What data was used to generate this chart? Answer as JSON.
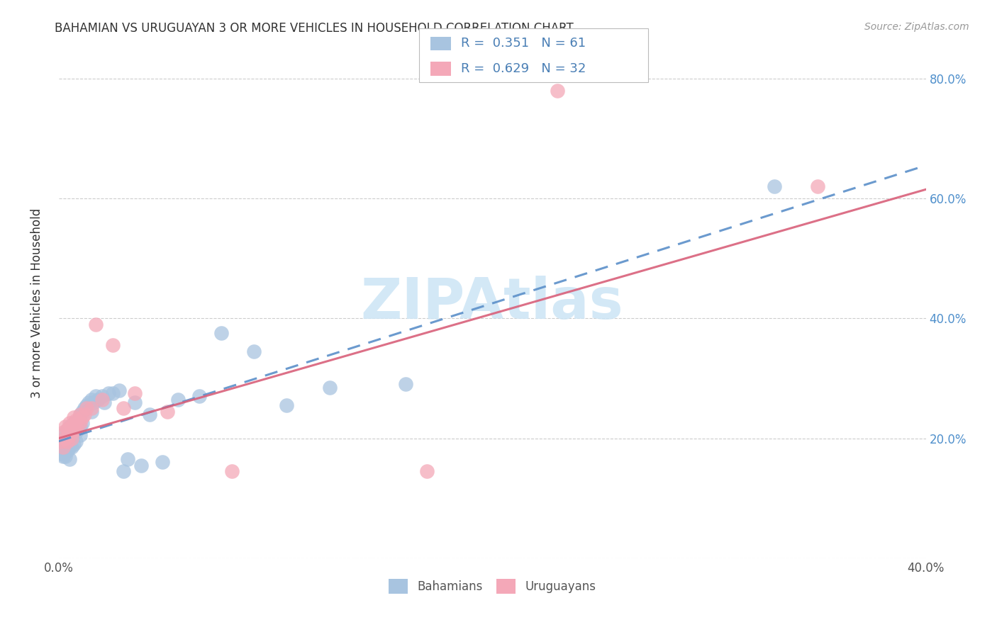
{
  "title": "BAHAMIAN VS URUGUAYAN 3 OR MORE VEHICLES IN HOUSEHOLD CORRELATION CHART",
  "source": "Source: ZipAtlas.com",
  "ylabel": "3 or more Vehicles in Household",
  "xlim": [
    0.0,
    0.4
  ],
  "ylim": [
    0.0,
    0.85
  ],
  "bahamian_color": "#a8c4e0",
  "uruguayan_color": "#f4a8b8",
  "bahamian_line_color": "#5b8fc9",
  "uruguayan_line_color": "#d9607a",
  "legend_text_color": "#4a7fb5",
  "legend_N_color": "#e05070",
  "R_bahamian": 0.351,
  "N_bahamian": 61,
  "R_uruguayan": 0.629,
  "N_uruguayan": 32,
  "watermark_text": "ZIPAtlas",
  "watermark_color": "#cce5f5",
  "grid_color": "#cccccc",
  "right_tick_color": "#5090cc",
  "ytick_positions": [
    0.0,
    0.2,
    0.4,
    0.6,
    0.8
  ],
  "ytick_labels_right": [
    "",
    "20.0%",
    "40.0%",
    "60.0%",
    "80.0%"
  ],
  "xtick_positions": [
    0.0,
    0.05,
    0.1,
    0.15,
    0.2,
    0.25,
    0.3,
    0.35,
    0.4
  ],
  "xtick_labels": [
    "0.0%",
    "",
    "",
    "",
    "",
    "",
    "",
    "",
    "40.0%"
  ],
  "bah_x": [
    0.001,
    0.001,
    0.002,
    0.002,
    0.002,
    0.003,
    0.003,
    0.003,
    0.003,
    0.004,
    0.004,
    0.004,
    0.004,
    0.005,
    0.005,
    0.005,
    0.005,
    0.006,
    0.006,
    0.006,
    0.006,
    0.007,
    0.007,
    0.007,
    0.008,
    0.008,
    0.008,
    0.009,
    0.009,
    0.01,
    0.01,
    0.01,
    0.011,
    0.011,
    0.012,
    0.013,
    0.014,
    0.015,
    0.015,
    0.016,
    0.017,
    0.018,
    0.02,
    0.021,
    0.023,
    0.025,
    0.028,
    0.03,
    0.032,
    0.035,
    0.038,
    0.042,
    0.048,
    0.055,
    0.065,
    0.075,
    0.09,
    0.105,
    0.125,
    0.16,
    0.33
  ],
  "bah_y": [
    0.195,
    0.175,
    0.185,
    0.17,
    0.2,
    0.195,
    0.21,
    0.185,
    0.17,
    0.195,
    0.215,
    0.205,
    0.18,
    0.2,
    0.22,
    0.185,
    0.165,
    0.22,
    0.21,
    0.2,
    0.185,
    0.225,
    0.205,
    0.19,
    0.225,
    0.21,
    0.195,
    0.23,
    0.215,
    0.24,
    0.22,
    0.205,
    0.245,
    0.225,
    0.25,
    0.255,
    0.26,
    0.265,
    0.245,
    0.26,
    0.27,
    0.265,
    0.27,
    0.26,
    0.275,
    0.275,
    0.28,
    0.145,
    0.165,
    0.26,
    0.155,
    0.24,
    0.16,
    0.265,
    0.27,
    0.375,
    0.345,
    0.255,
    0.285,
    0.29,
    0.62
  ],
  "uru_x": [
    0.001,
    0.002,
    0.002,
    0.003,
    0.003,
    0.004,
    0.004,
    0.005,
    0.005,
    0.006,
    0.006,
    0.007,
    0.007,
    0.008,
    0.008,
    0.009,
    0.01,
    0.01,
    0.011,
    0.012,
    0.013,
    0.015,
    0.017,
    0.02,
    0.025,
    0.03,
    0.035,
    0.05,
    0.08,
    0.17,
    0.23,
    0.35
  ],
  "uru_y": [
    0.195,
    0.185,
    0.21,
    0.2,
    0.22,
    0.195,
    0.215,
    0.205,
    0.225,
    0.2,
    0.22,
    0.215,
    0.235,
    0.215,
    0.23,
    0.225,
    0.225,
    0.24,
    0.235,
    0.24,
    0.25,
    0.25,
    0.39,
    0.265,
    0.355,
    0.25,
    0.275,
    0.245,
    0.145,
    0.145,
    0.78,
    0.62
  ]
}
